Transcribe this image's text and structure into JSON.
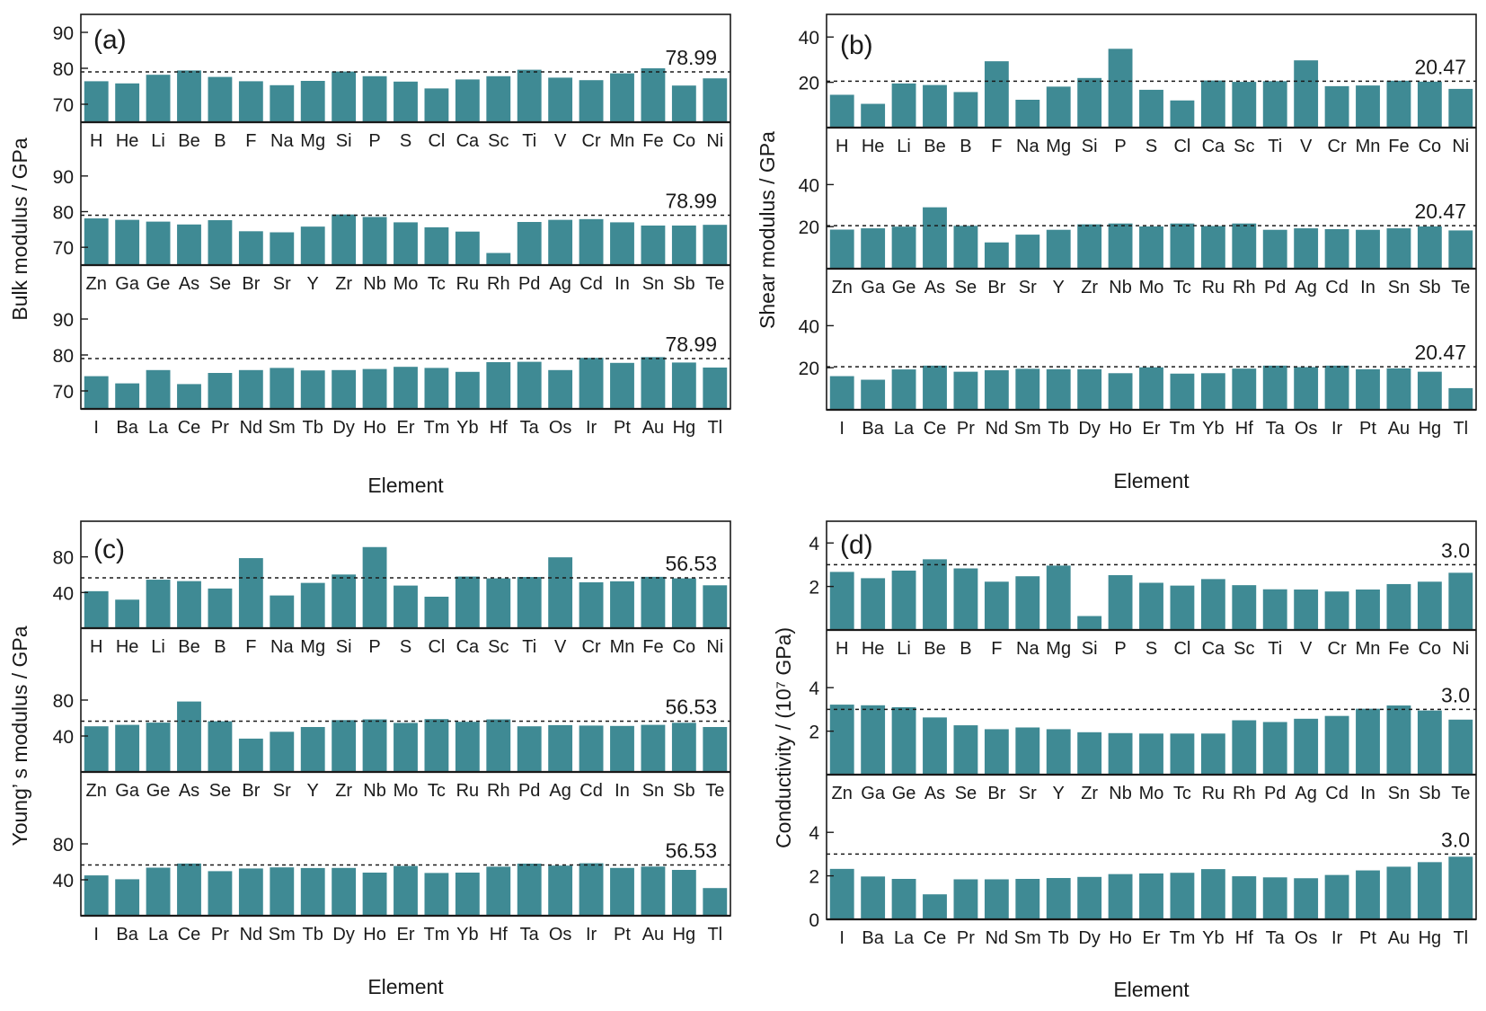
{
  "style": {
    "bar_color": "#3f8a94"
  },
  "chart_data": [
    {
      "type": "bar",
      "panel_label": "(a)",
      "ylabel": "Bulk modulus / GPa",
      "xlabel": "Element",
      "reference": {
        "value": 78.99,
        "label": "78.99"
      },
      "grid": false,
      "rows": [
        {
          "categories": [
            "H",
            "He",
            "Li",
            "Be",
            "B",
            "F",
            "Na",
            "Mg",
            "Si",
            "P",
            "S",
            "Cl",
            "Ca",
            "Sc",
            "Ti",
            "V",
            "Cr",
            "Mn",
            "Fe",
            "Co",
            "Ni"
          ],
          "values": [
            76.4,
            75.8,
            78.2,
            79.4,
            77.6,
            76.4,
            75.3,
            76.5,
            79.1,
            77.8,
            76.3,
            74.4,
            76.9,
            77.8,
            79.6,
            77.4,
            76.7,
            78.6,
            80.0,
            75.2,
            77.2
          ],
          "ylim": [
            65,
            95
          ],
          "yticks": [
            70,
            80,
            90
          ]
        },
        {
          "categories": [
            "Zn",
            "Ga",
            "Ge",
            "As",
            "Se",
            "Br",
            "Sr",
            "Y",
            "Zr",
            "Nb",
            "Mo",
            "Tc",
            "Ru",
            "Rh",
            "Pd",
            "Ag",
            "Cd",
            "In",
            "Sn",
            "Sb",
            "Te"
          ],
          "values": [
            78.1,
            77.7,
            77.2,
            76.4,
            77.6,
            74.5,
            74.2,
            75.8,
            79.2,
            78.5,
            77.0,
            75.6,
            74.4,
            68.4,
            77.1,
            77.7,
            77.9,
            77.0,
            76.1,
            76.1,
            76.3
          ],
          "ylim": [
            65,
            95
          ],
          "yticks": [
            70,
            80,
            90
          ]
        },
        {
          "categories": [
            "I",
            "Ba",
            "La",
            "Ce",
            "Pr",
            "Nd",
            "Sm",
            "Tb",
            "Dy",
            "Ho",
            "Er",
            "Tm",
            "Yb",
            "Hf",
            "Ta",
            "Os",
            "Ir",
            "Pt",
            "Au",
            "Hg",
            "Tl"
          ],
          "values": [
            74.1,
            72.1,
            75.8,
            71.9,
            75.0,
            75.8,
            76.4,
            75.7,
            75.8,
            76.1,
            76.7,
            76.4,
            75.3,
            78.0,
            78.1,
            75.8,
            79.2,
            77.8,
            79.4,
            77.9,
            76.5
          ],
          "ylim": [
            65,
            95
          ],
          "yticks": [
            70,
            80,
            90
          ]
        }
      ]
    },
    {
      "type": "bar",
      "panel_label": "(b)",
      "ylabel": "Shear modulus / GPa",
      "xlabel": "Element",
      "reference": {
        "value": 20.47,
        "label": "20.47"
      },
      "grid": false,
      "rows": [
        {
          "categories": [
            "H",
            "He",
            "Li",
            "Be",
            "B",
            "F",
            "Na",
            "Mg",
            "Si",
            "P",
            "S",
            "Cl",
            "Ca",
            "Sc",
            "Ti",
            "V",
            "Cr",
            "Mn",
            "Fe",
            "Co",
            "Ni"
          ],
          "values": [
            14.5,
            10.5,
            19.5,
            18.8,
            15.7,
            29.3,
            12.3,
            18.1,
            21.9,
            34.8,
            16.7,
            12.0,
            20.8,
            20.2,
            20.5,
            29.7,
            18.3,
            18.6,
            20.7,
            20.3,
            17.1
          ],
          "ylim": [
            0,
            50
          ],
          "yticks": [
            20,
            40
          ]
        },
        {
          "categories": [
            "Zn",
            "Ga",
            "Ge",
            "As",
            "Se",
            "Br",
            "Sr",
            "Y",
            "Zr",
            "Nb",
            "Mo",
            "Tc",
            "Ru",
            "Rh",
            "Pd",
            "Ag",
            "Cd",
            "In",
            "Sn",
            "Sb",
            "Te"
          ],
          "values": [
            18.6,
            19.2,
            20.0,
            29.2,
            20.4,
            12.5,
            16.2,
            18.5,
            21.1,
            21.5,
            20.1,
            21.5,
            20.3,
            21.5,
            18.5,
            19.2,
            18.8,
            18.5,
            19.2,
            20.1,
            18.2
          ],
          "ylim": [
            0,
            50
          ],
          "yticks": [
            20,
            40
          ]
        },
        {
          "categories": [
            "I",
            "Ba",
            "La",
            "Ce",
            "Pr",
            "Nd",
            "Sm",
            "Tb",
            "Dy",
            "Ho",
            "Er",
            "Tm",
            "Yb",
            "Hf",
            "Ta",
            "Os",
            "Ir",
            "Pt",
            "Au",
            "Hg",
            "Tl"
          ],
          "values": [
            16.0,
            14.3,
            19.2,
            21.0,
            18.1,
            18.8,
            19.5,
            19.3,
            19.3,
            17.4,
            20.2,
            17.2,
            17.4,
            19.6,
            21.0,
            20.3,
            21.0,
            19.3,
            19.7,
            18.1,
            10.3
          ],
          "ylim": [
            0,
            50
          ],
          "yticks": [
            20,
            40
          ]
        }
      ]
    },
    {
      "type": "bar",
      "panel_label": "(c)",
      "ylabel": "Young’ s modulus / GPa",
      "xlabel": "Element",
      "reference": {
        "value": 56.53,
        "label": "56.53"
      },
      "grid": false,
      "rows": [
        {
          "categories": [
            "H",
            "He",
            "Li",
            "Be",
            "B",
            "F",
            "Na",
            "Mg",
            "Si",
            "P",
            "S",
            "Cl",
            "Ca",
            "Sc",
            "Ti",
            "V",
            "Cr",
            "Mn",
            "Fe",
            "Co",
            "Ni"
          ],
          "values": [
            41.5,
            32.0,
            54.4,
            52.8,
            44.5,
            78.6,
            36.7,
            50.8,
            60.2,
            91.0,
            47.8,
            35.3,
            57.9,
            55.9,
            57.4,
            79.5,
            51.5,
            52.6,
            57.6,
            55.9,
            48.1
          ],
          "ylim": [
            0,
            120
          ],
          "yticks": [
            40,
            80
          ]
        },
        {
          "categories": [
            "Zn",
            "Ga",
            "Ge",
            "As",
            "Se",
            "Br",
            "Sr",
            "Y",
            "Zr",
            "Nb",
            "Mo",
            "Tc",
            "Ru",
            "Rh",
            "Pd",
            "Ag",
            "Cd",
            "In",
            "Sn",
            "Sb",
            "Te"
          ],
          "values": [
            50.8,
            52.4,
            54.9,
            78.4,
            56.4,
            37.1,
            44.7,
            50.0,
            57.7,
            58.5,
            54.6,
            58.8,
            55.8,
            58.5,
            50.8,
            52.1,
            51.6,
            51.2,
            52.4,
            54.7,
            50.0
          ],
          "ylim": [
            0,
            120
          ],
          "yticks": [
            40,
            80
          ]
        },
        {
          "categories": [
            "I",
            "Ba",
            "La",
            "Ce",
            "Pr",
            "Nd",
            "Sm",
            "Tb",
            "Dy",
            "Ho",
            "Er",
            "Tm",
            "Yb",
            "Hf",
            "Ta",
            "Os",
            "Ir",
            "Pt",
            "Au",
            "Hg",
            "Tl"
          ],
          "values": [
            44.9,
            40.6,
            53.5,
            58.1,
            49.6,
            52.6,
            53.8,
            53.1,
            53.2,
            48.0,
            55.4,
            47.6,
            48.0,
            54.6,
            58.0,
            55.8,
            58.4,
            53.2,
            54.7,
            51.0,
            30.8
          ],
          "ylim": [
            0,
            120
          ],
          "yticks": [
            40,
            80
          ]
        }
      ]
    },
    {
      "type": "bar",
      "panel_label": "(d)",
      "ylabel": "Conductivity / (10⁷ GPa)",
      "xlabel": "Element",
      "reference": {
        "value": 3.0,
        "label": "3.0"
      },
      "grid": false,
      "rows": [
        {
          "categories": [
            "H",
            "He",
            "Li",
            "Be",
            "B",
            "F",
            "Na",
            "Mg",
            "Si",
            "P",
            "S",
            "Cl",
            "Ca",
            "Sc",
            "Ti",
            "V",
            "Cr",
            "Mn",
            "Fe",
            "Co",
            "Ni"
          ],
          "values": [
            2.67,
            2.38,
            2.73,
            3.25,
            2.83,
            2.22,
            2.47,
            2.96,
            0.64,
            2.52,
            2.17,
            2.04,
            2.34,
            2.06,
            1.87,
            1.86,
            1.77,
            1.86,
            2.11,
            2.22,
            2.63
          ],
          "ylim": [
            0,
            5
          ],
          "yticks": [
            2,
            4
          ]
        },
        {
          "categories": [
            "Zn",
            "Ga",
            "Ge",
            "As",
            "Se",
            "Br",
            "Sr",
            "Y",
            "Zr",
            "Nb",
            "Mo",
            "Tc",
            "Ru",
            "Rh",
            "Pd",
            "Ag",
            "Cd",
            "In",
            "Sn",
            "Sb",
            "Te"
          ],
          "values": [
            3.22,
            3.19,
            3.1,
            2.63,
            2.27,
            2.09,
            2.17,
            2.09,
            1.95,
            1.91,
            1.89,
            1.89,
            1.89,
            2.5,
            2.42,
            2.57,
            2.7,
            3.03,
            3.18,
            2.95,
            2.53
          ],
          "ylim": [
            0,
            5
          ],
          "yticks": [
            2,
            4
          ]
        },
        {
          "categories": [
            "I",
            "Ba",
            "La",
            "Ce",
            "Pr",
            "Nd",
            "Sm",
            "Tb",
            "Dy",
            "Ho",
            "Er",
            "Tm",
            "Yb",
            "Hf",
            "Ta",
            "Os",
            "Ir",
            "Pt",
            "Au",
            "Hg",
            "Tl"
          ],
          "values": [
            2.32,
            1.97,
            1.86,
            1.15,
            1.84,
            1.84,
            1.86,
            1.9,
            1.95,
            2.08,
            2.11,
            2.14,
            2.31,
            1.98,
            1.93,
            1.89,
            2.04,
            2.25,
            2.42,
            2.63,
            2.88
          ],
          "ylim": [
            0,
            5
          ],
          "yticks": [
            0,
            2,
            4
          ]
        }
      ]
    }
  ]
}
